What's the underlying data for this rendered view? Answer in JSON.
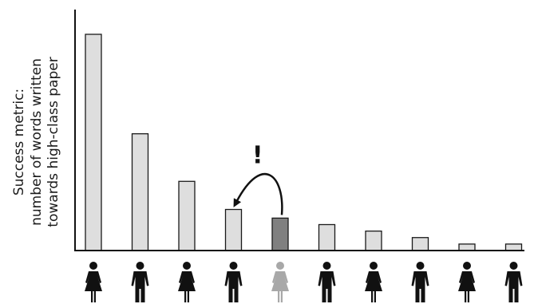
{
  "chart_data": {
    "type": "bar",
    "title": "",
    "xlabel": "",
    "ylabel_lines": [
      "Success metric:",
      "number of words written",
      "towards high-class paper"
    ],
    "categories": [
      "person-1",
      "person-2",
      "person-3",
      "person-4",
      "person-5",
      "person-6",
      "person-7",
      "person-8",
      "person-9",
      "person-10"
    ],
    "values": [
      100,
      54,
      32,
      19,
      15,
      12,
      9,
      6,
      3,
      3
    ],
    "ylim": [
      0,
      100
    ],
    "grid": false,
    "legend": "none",
    "highlight_index": 4,
    "arrow_from_index": 4,
    "arrow_to_index": 3,
    "annotation_text": "!",
    "figures": [
      "female",
      "male",
      "female",
      "male",
      "female",
      "male",
      "female",
      "male",
      "female",
      "male"
    ],
    "colors": {
      "bar_fill": "#dedede",
      "bar_highlight": "#808080",
      "bar_stroke": "#1a1a1a",
      "axis": "#111111",
      "figure": "#111111",
      "figure_highlight": "#a8a8a8"
    }
  }
}
